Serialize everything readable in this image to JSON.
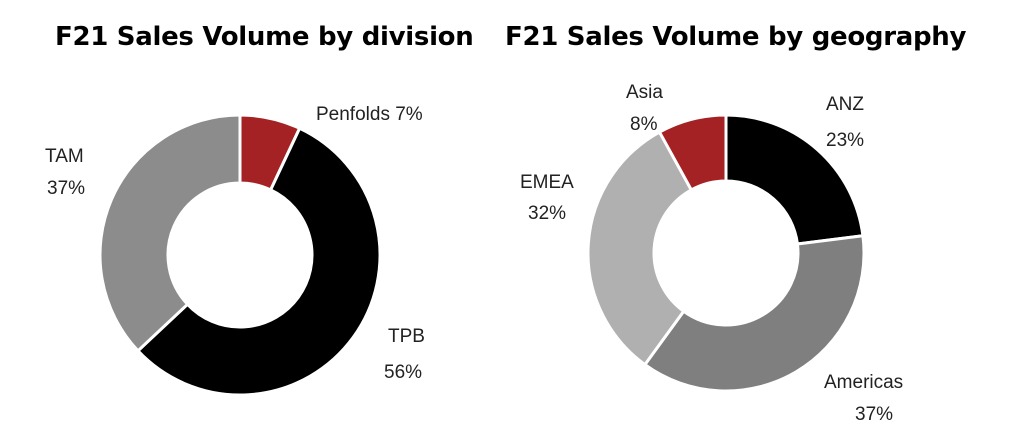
{
  "chart_data": [
    {
      "type": "pie",
      "title": "F21 Sales Volume by division",
      "categories": [
        "Penfolds",
        "TPB",
        "TAM"
      ],
      "values": [
        7,
        56,
        37
      ],
      "value_labels": [
        "7%",
        "56%",
        "37%"
      ],
      "colors": [
        "#a52224",
        "#000000",
        "#8c8c8c"
      ],
      "donut": true,
      "legend": "none"
    },
    {
      "type": "pie",
      "title": "F21 Sales Volume by geography",
      "categories": [
        "ANZ",
        "Americas",
        "EMEA",
        "Asia"
      ],
      "values": [
        23,
        37,
        32,
        8
      ],
      "value_labels": [
        "23%",
        "37%",
        "32%",
        "8%"
      ],
      "colors": [
        "#000000",
        "#7f7f7f",
        "#b0b0b0",
        "#a52224"
      ],
      "donut": true,
      "legend": "none"
    }
  ]
}
